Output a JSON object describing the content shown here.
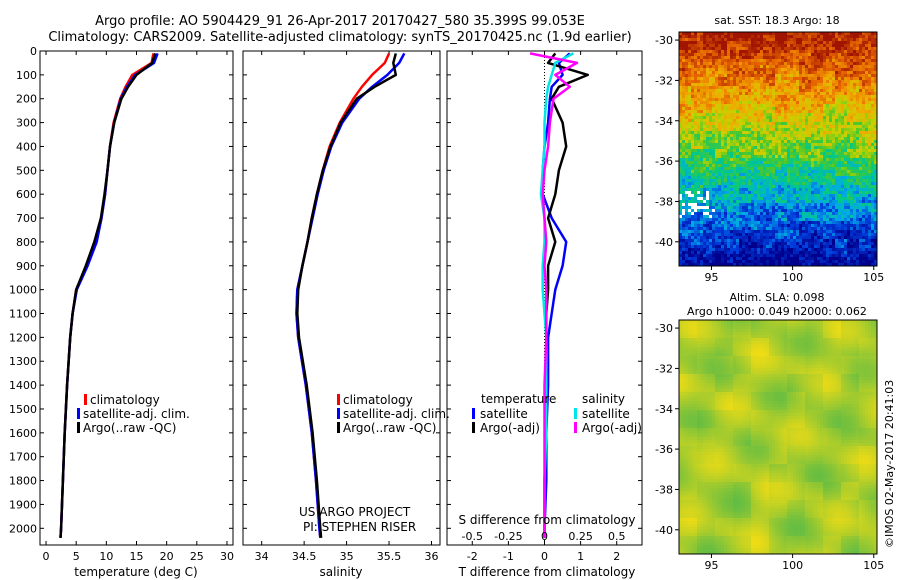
{
  "header": {
    "title_line1": "Argo profile: AO 5904429_91 26-Apr-2017 20170427_580 35.399S 99.053E",
    "title_line2": "Climatology: CARS2009. Satellite-adjusted climatology: synTS_20170425.nc (1.9d earlier)"
  },
  "colors": {
    "climatology": "#ff0000",
    "satellite": "#0000ff",
    "argo": "#000000",
    "salinity_satellite": "#00e5e5",
    "salinity_argo": "#ff00ff"
  },
  "chart_data": [
    {
      "type": "line",
      "id": "temperature",
      "xlabel": "temperature (deg C)",
      "xlim": [
        -1,
        31
      ],
      "ylim": [
        2070,
        0
      ],
      "x_ticks": [
        0,
        5,
        10,
        15,
        20,
        25,
        30
      ],
      "y_ticks": [
        0,
        100,
        200,
        300,
        400,
        500,
        600,
        700,
        800,
        900,
        1000,
        1100,
        1200,
        1300,
        1400,
        1500,
        1600,
        1700,
        1800,
        1900,
        2000
      ],
      "legend": [
        "climatology",
        "satellite-adj. clim.",
        "Argo(..raw -QC)"
      ],
      "depth": [
        10,
        50,
        100,
        150,
        200,
        300,
        400,
        500,
        600,
        700,
        800,
        900,
        1000,
        1100,
        1200,
        1400,
        1600,
        1800,
        2000,
        2040
      ],
      "series": [
        {
          "name": "climatology",
          "values": [
            17.8,
            17.5,
            14.3,
            13.2,
            12.3,
            11.2,
            10.6,
            10.2,
            9.8,
            9.2,
            8.3,
            6.8,
            5.0,
            4.4,
            4.0,
            3.5,
            3.1,
            2.8,
            2.5,
            2.4
          ]
        },
        {
          "name": "satellite-adj. clim.",
          "values": [
            18.5,
            17.9,
            14.8,
            13.4,
            12.4,
            11.3,
            10.6,
            10.2,
            9.8,
            9.2,
            8.4,
            6.9,
            5.1,
            4.4,
            4.0,
            3.5,
            3.1,
            2.8,
            2.5,
            2.4
          ]
        },
        {
          "name": "Argo(..raw -QC)",
          "values": [
            18.1,
            17.6,
            15.0,
            13.6,
            12.5,
            11.3,
            10.6,
            10.2,
            9.7,
            9.1,
            8.0,
            6.6,
            5.0,
            4.4,
            4.0,
            3.5,
            3.1,
            2.8,
            2.5,
            2.4
          ]
        }
      ]
    },
    {
      "type": "line",
      "id": "salinity",
      "xlabel": "salinity",
      "xlim": [
        33.78,
        36.1
      ],
      "ylim": [
        2070,
        0
      ],
      "x_ticks": [
        34,
        34.5,
        35,
        35.5,
        36
      ],
      "legend": [
        "climatology",
        "satellite-adj. clim.",
        "Argo(..raw -QC)"
      ],
      "depth": [
        10,
        50,
        100,
        150,
        200,
        300,
        400,
        500,
        600,
        700,
        800,
        900,
        1000,
        1100,
        1200,
        1400,
        1600,
        1800,
        2000,
        2040
      ],
      "series": [
        {
          "name": "climatology",
          "values": [
            35.5,
            35.45,
            35.3,
            35.18,
            35.08,
            34.92,
            34.8,
            34.72,
            34.65,
            34.59,
            34.54,
            34.48,
            34.42,
            34.41,
            34.43,
            34.52,
            34.59,
            34.64,
            34.68,
            34.69
          ]
        },
        {
          "name": "satellite-adj. clim.",
          "values": [
            35.68,
            35.62,
            35.48,
            35.3,
            35.15,
            34.95,
            34.82,
            34.73,
            34.66,
            34.6,
            34.54,
            34.48,
            34.42,
            34.41,
            34.43,
            34.52,
            34.59,
            34.64,
            34.68,
            34.69
          ]
        },
        {
          "name": "Argo(..raw -QC)",
          "values": [
            35.58,
            35.55,
            35.58,
            35.33,
            35.12,
            34.93,
            34.81,
            34.72,
            34.65,
            34.59,
            34.54,
            34.48,
            34.43,
            34.42,
            34.44,
            34.53,
            34.6,
            34.65,
            34.69,
            34.7
          ]
        }
      ],
      "annotations": [
        "US ARGO PROJECT",
        "PI: STEPHEN RISER"
      ]
    },
    {
      "type": "line",
      "id": "difference",
      "xlabel": "T difference from climatology",
      "top_label": "S difference from climatology",
      "xlim": [
        -2.7,
        2.7
      ],
      "ylim": [
        2070,
        0
      ],
      "x_ticks": [
        -2,
        -1,
        0,
        1,
        2
      ],
      "s_ticks": [
        "-0.5",
        "-0.25",
        "0",
        "0.25",
        "0.5"
      ],
      "legend_groups": [
        "temperature",
        "salinity"
      ],
      "legend": [
        "satellite",
        "Argo(-adj)",
        "satellite",
        "Argo(-adj)"
      ],
      "depth": [
        10,
        50,
        100,
        150,
        200,
        300,
        400,
        500,
        600,
        700,
        800,
        900,
        1000,
        1100,
        1200,
        1400,
        1600,
        1800,
        2000,
        2040
      ],
      "series": [
        {
          "name": "satellite",
          "group": "temperature",
          "values": [
            0.7,
            0.4,
            0.5,
            0.2,
            0.15,
            0.1,
            0,
            -0.05,
            -0.05,
            0.2,
            0.6,
            0.5,
            0.3,
            0.2,
            0.1,
            0.1,
            0.05,
            0.05,
            0,
            0
          ]
        },
        {
          "name": "Argo(-adj)",
          "group": "temperature",
          "values": [
            0.3,
            0.1,
            1.2,
            0.4,
            0.2,
            0.5,
            0.6,
            0.4,
            0.3,
            0.1,
            0.3,
            0.1,
            0.1,
            0.05,
            0.05,
            0.05,
            0.05,
            0,
            0,
            0
          ]
        },
        {
          "name": "satellite",
          "group": "salinity",
          "values": [
            0.8,
            0.3,
            0.2,
            0.1,
            0.05,
            0,
            0,
            -0.05,
            -0.1,
            0,
            0,
            -0.05,
            -0.05,
            0,
            0.05,
            0.05,
            0.05,
            0,
            0,
            0
          ]
        },
        {
          "name": "Argo(-adj)",
          "group": "salinity",
          "values": [
            -0.4,
            0.9,
            0.3,
            0.7,
            0.25,
            0.15,
            0.1,
            0,
            -0.05,
            0,
            0.05,
            0,
            0.05,
            0.05,
            0.05,
            0,
            0,
            0,
            0,
            0
          ]
        }
      ]
    },
    {
      "type": "heatmap",
      "id": "sst-map",
      "title": "sat. SST: 18.3 Argo: 18",
      "x_ticks": [
        95,
        100,
        105
      ],
      "y_ticks": [
        -30,
        -32,
        -34,
        -36,
        -38,
        -40
      ],
      "xlim": [
        93,
        105.2
      ],
      "ylim": [
        -41.2,
        -29.6
      ]
    },
    {
      "type": "heatmap",
      "id": "sla-map",
      "title_line1": "Altim. SLA: 0.098",
      "title_line2": "Argo h1000: 0.049 h2000: 0.062",
      "x_ticks": [
        95,
        100,
        105
      ],
      "y_ticks": [
        -30,
        -32,
        -34,
        -36,
        -38,
        -40
      ],
      "xlim": [
        93,
        105.2
      ],
      "ylim": [
        -41.2,
        -29.6
      ]
    }
  ],
  "footer": {
    "timestamp": "©IMOS 02-May-2017 20:41:03"
  }
}
